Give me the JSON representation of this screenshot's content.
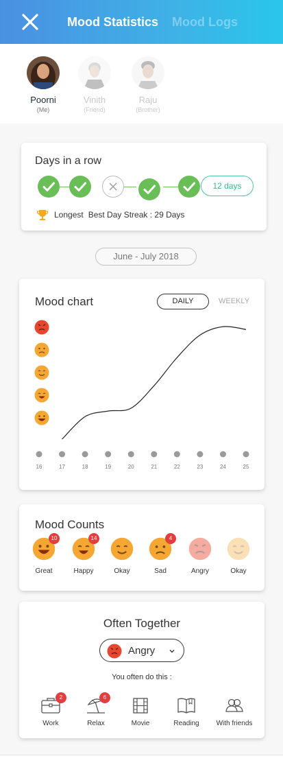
{
  "header": {
    "close_icon": "close-icon",
    "tabs": [
      {
        "label": "Mood Statistics",
        "active": true
      },
      {
        "label": "Mood Logs",
        "active": false
      }
    ],
    "gradient": [
      "#4a90e2",
      "#29c6ea"
    ]
  },
  "friends": [
    {
      "name": "Poorni",
      "relation": "(Me)",
      "selected": true
    },
    {
      "name": "Vinith",
      "relation": "(Friend)",
      "selected": false
    },
    {
      "name": "Raju",
      "relation": "(Brother)",
      "selected": false
    }
  ],
  "streak": {
    "title": "Days in a row",
    "days": [
      "done",
      "done",
      "missed",
      "done",
      "done"
    ],
    "count_label": "12 days",
    "longest_icon": "trophy-icon",
    "longest_label": "Longest",
    "longest_text": "Best Day Streak : 29 Days",
    "accent": "#6abe57"
  },
  "date_range": "June - July 2018",
  "mood_chart": {
    "title": "Mood chart",
    "toggle": {
      "daily": "DAILY",
      "weekly": "WEEKLY",
      "active": "daily"
    },
    "mood_levels": [
      "angry",
      "sad",
      "okay",
      "happy",
      "great"
    ],
    "chart_data": {
      "type": "line",
      "x": [
        16,
        17,
        18,
        19,
        20,
        21,
        22,
        23,
        24,
        25
      ],
      "x_tick_labels": [
        "16",
        "17",
        "18",
        "19",
        "20",
        "21",
        "22",
        "23",
        "24",
        "25"
      ],
      "curve_x": [
        17,
        18,
        19,
        20,
        21,
        22,
        23,
        24,
        25
      ],
      "curve_y": [
        0.9,
        1.7,
        1.9,
        2.0,
        2.8,
        3.8,
        4.6,
        4.9,
        4.8
      ],
      "y_levels": [
        "great",
        "happy",
        "okay",
        "sad",
        "angry"
      ],
      "ylim": [
        1,
        5
      ],
      "grid": false
    }
  },
  "mood_counts": {
    "title": "Mood Counts",
    "items": [
      {
        "label": "Great",
        "mood": "great",
        "count": "10"
      },
      {
        "label": "Happy",
        "mood": "happy",
        "count": "14"
      },
      {
        "label": "Okay",
        "mood": "okay",
        "count": ""
      },
      {
        "label": "Sad",
        "mood": "sad",
        "count": "4"
      },
      {
        "label": "Angry",
        "mood": "angry",
        "count": ""
      },
      {
        "label": "Okay",
        "mood": "okay",
        "count": ""
      }
    ]
  },
  "often_together": {
    "title": "Often Together",
    "selected_mood": "Angry",
    "subtitle": "You often do this :",
    "activities": [
      {
        "label": "Work",
        "icon": "briefcase-icon",
        "count": "2"
      },
      {
        "label": "Relax",
        "icon": "beach-umbrella-icon",
        "count": "6"
      },
      {
        "label": "Movie",
        "icon": "film-icon",
        "count": ""
      },
      {
        "label": "Reading",
        "icon": "book-icon",
        "count": ""
      },
      {
        "label": "With friends",
        "icon": "friends-icon",
        "count": ""
      }
    ]
  }
}
